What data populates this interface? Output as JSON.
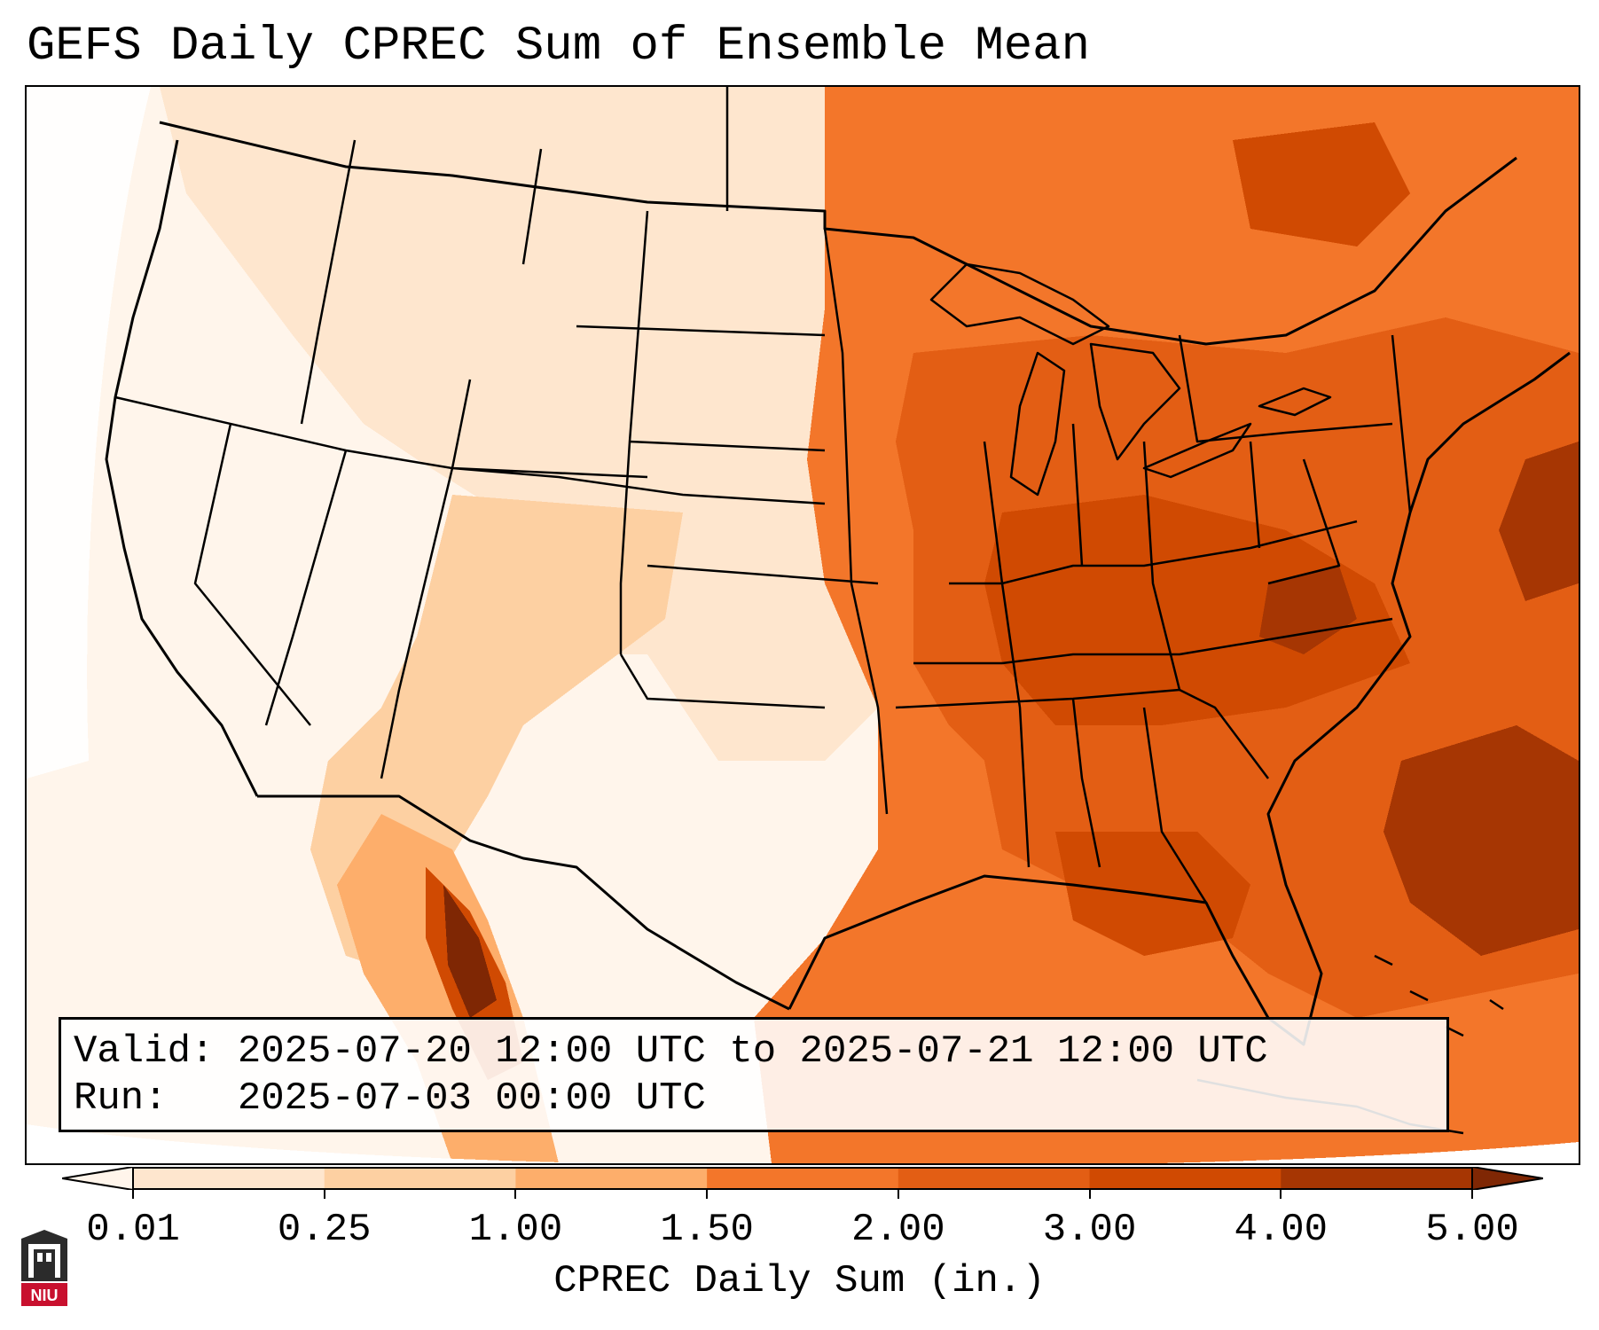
{
  "title": "GEFS Daily CPREC Sum of Ensemble Mean",
  "info": {
    "valid_line": "Valid: 2025-07-20 12:00 UTC to 2025-07-21 12:00 UTC",
    "run_line": "Run:   2025-07-03 00:00 UTC"
  },
  "colorbar": {
    "label": "CPREC Daily Sum (in.)",
    "ticks": [
      "0.01",
      "0.25",
      "1.00",
      "1.50",
      "2.00",
      "3.00",
      "4.00",
      "5.00"
    ],
    "colors": [
      "#fff5eb",
      "#fee6ce",
      "#fdd0a2",
      "#fdae6b",
      "#f3762a",
      "#e35e14",
      "#d04a02",
      "#a63603",
      "#7f2704"
    ],
    "extend": "both"
  },
  "logo": {
    "text": "NIU",
    "icon": "university-tower-logo"
  },
  "map": {
    "region": "CONUS",
    "fill_colors": {
      "none": "#fff5eb",
      "very_light": "#fee6ce",
      "light": "#fdd0a2",
      "medium": "#fdae6b",
      "orange": "#f3762a",
      "deep": "#e35e14",
      "dark": "#d04a02",
      "darkest": "#7f2704"
    }
  }
}
